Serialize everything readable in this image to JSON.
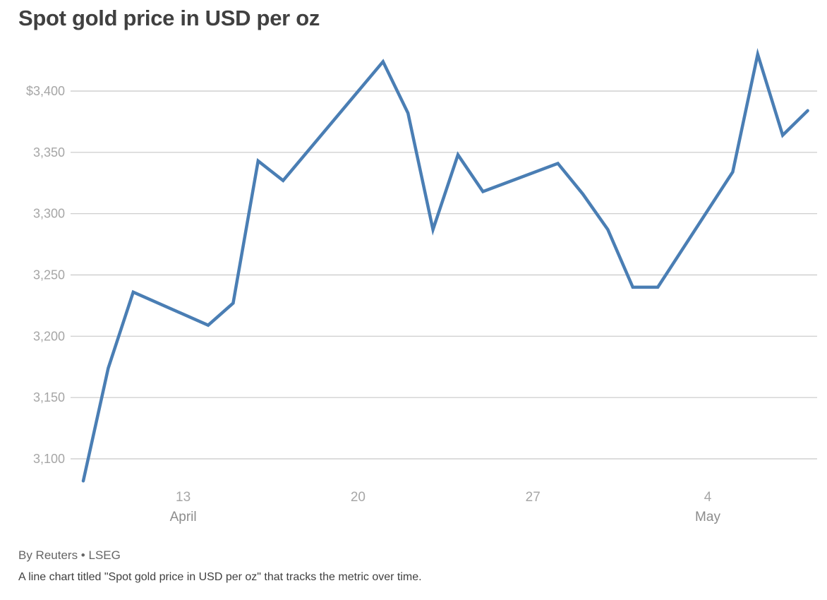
{
  "header": {
    "title": "Spot gold price in USD per oz"
  },
  "footer": {
    "byline": "By Reuters • LSEG",
    "caption": "A line chart titled \"Spot gold price in USD per oz\" that tracks the metric over time."
  },
  "chart_data": {
    "type": "line",
    "title": "Spot gold price in USD per oz",
    "xlabel": "",
    "ylabel": "",
    "ylim": [
      3080,
      3440
    ],
    "xlim": [
      "2025-04-09",
      "2025-05-08"
    ],
    "grid": true,
    "legend": "none",
    "y_ticks": [
      {
        "value": 3100,
        "label": "3,100"
      },
      {
        "value": 3150,
        "label": "3,150"
      },
      {
        "value": 3200,
        "label": "3,200"
      },
      {
        "value": 3250,
        "label": "3,250"
      },
      {
        "value": 3300,
        "label": "3,300"
      },
      {
        "value": 3350,
        "label": "3,350"
      },
      {
        "value": 3400,
        "label": "$3,400"
      }
    ],
    "x_ticks": [
      {
        "date": "2025-04-13",
        "label": "13",
        "sublabel": "April"
      },
      {
        "date": "2025-04-20",
        "label": "20",
        "sublabel": ""
      },
      {
        "date": "2025-04-27",
        "label": "27",
        "sublabel": ""
      },
      {
        "date": "2025-05-04",
        "label": "4",
        "sublabel": "May"
      }
    ],
    "line_color": "#4a7eb4",
    "series": [
      {
        "x": [
          "2025-04-09",
          "2025-04-10",
          "2025-04-11",
          "2025-04-14",
          "2025-04-15",
          "2025-04-16",
          "2025-04-17",
          "2025-04-21",
          "2025-04-22",
          "2025-04-23",
          "2025-04-24",
          "2025-04-25",
          "2025-04-28",
          "2025-04-29",
          "2025-04-30",
          "2025-05-01",
          "2025-05-02",
          "2025-05-05",
          "2025-05-06",
          "2025-05-07",
          "2025-05-08"
        ],
        "values": [
          3082,
          3174,
          3236,
          3209,
          3227,
          3343,
          3327,
          3424,
          3382,
          3287,
          3348,
          3318,
          3341,
          3316,
          3287,
          3240,
          3240,
          3334,
          3430,
          3364,
          3384
        ]
      }
    ]
  }
}
